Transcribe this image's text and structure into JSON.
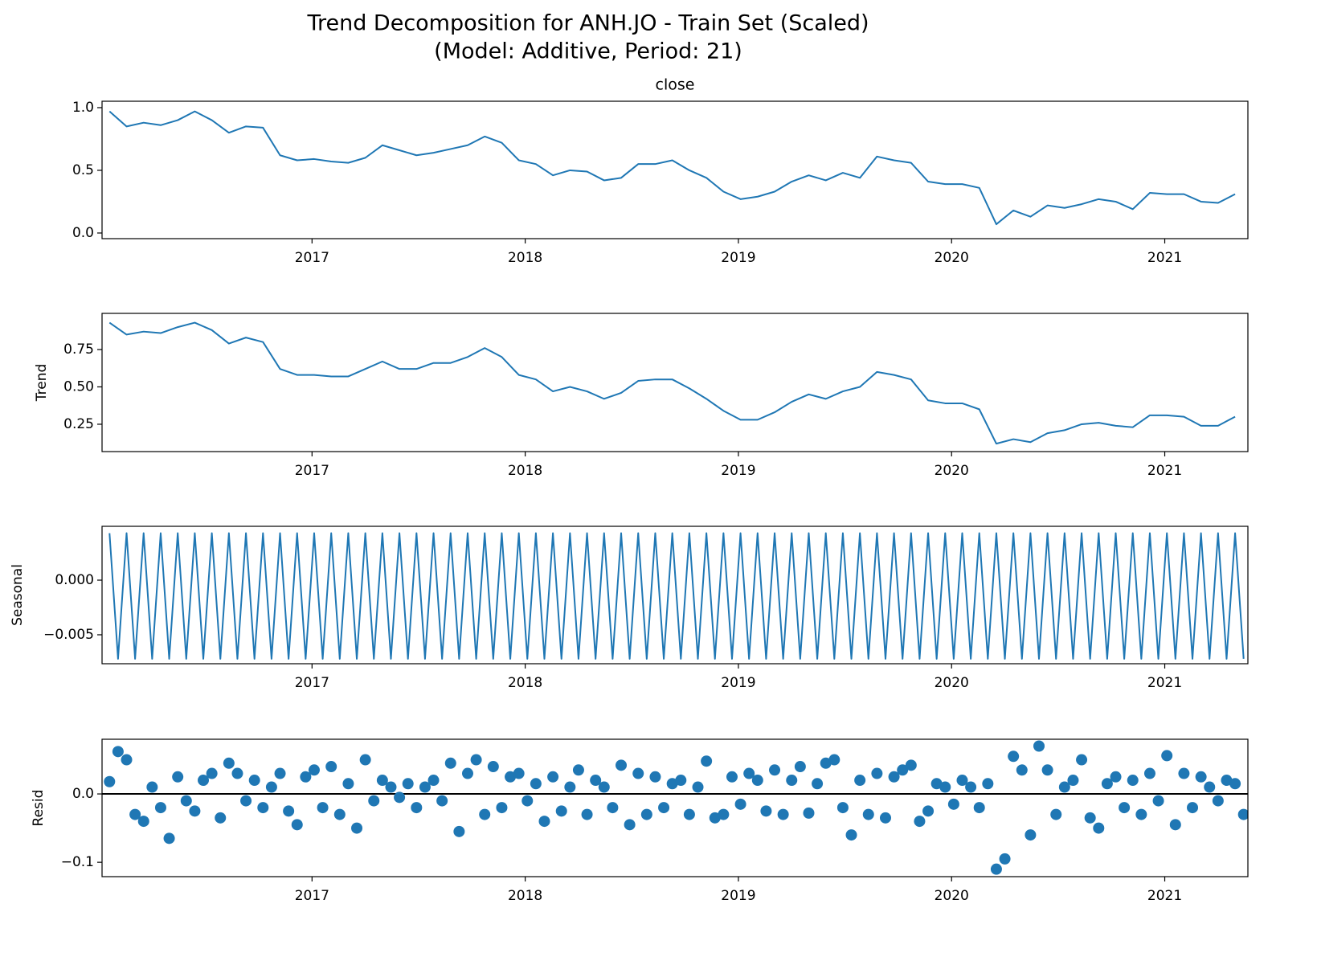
{
  "title": [
    "Trend Decomposition for ANH.JO - Train Set (Scaled)",
    "(Model: Additive, Period: 21)"
  ],
  "chart_data": [
    {
      "type": "line",
      "title": "close",
      "color": "#1f77b4",
      "x": [
        2016.05,
        2016.13,
        2016.21,
        2016.29,
        2016.37,
        2016.45,
        2016.53,
        2016.61,
        2016.69,
        2016.77,
        2016.85,
        2016.93,
        2017.01,
        2017.09,
        2017.17,
        2017.25,
        2017.33,
        2017.41,
        2017.49,
        2017.57,
        2017.65,
        2017.73,
        2017.81,
        2017.89,
        2017.97,
        2018.05,
        2018.13,
        2018.21,
        2018.29,
        2018.37,
        2018.45,
        2018.53,
        2018.61,
        2018.69,
        2018.77,
        2018.85,
        2018.93,
        2019.01,
        2019.09,
        2019.17,
        2019.25,
        2019.33,
        2019.41,
        2019.49,
        2019.57,
        2019.65,
        2019.73,
        2019.81,
        2019.89,
        2019.97,
        2020.05,
        2020.13,
        2020.21,
        2020.29,
        2020.37,
        2020.45,
        2020.53,
        2020.61,
        2020.69,
        2020.77,
        2020.85,
        2020.93,
        2021.01,
        2021.09,
        2021.17,
        2021.25,
        2021.33
      ],
      "values": [
        0.97,
        0.85,
        0.88,
        0.86,
        0.9,
        0.97,
        0.9,
        0.8,
        0.85,
        0.84,
        0.62,
        0.58,
        0.59,
        0.57,
        0.56,
        0.6,
        0.7,
        0.66,
        0.62,
        0.64,
        0.67,
        0.7,
        0.77,
        0.72,
        0.58,
        0.55,
        0.46,
        0.5,
        0.49,
        0.42,
        0.44,
        0.55,
        0.55,
        0.58,
        0.5,
        0.44,
        0.33,
        0.27,
        0.29,
        0.33,
        0.41,
        0.46,
        0.42,
        0.48,
        0.44,
        0.61,
        0.58,
        0.56,
        0.41,
        0.39,
        0.39,
        0.36,
        0.07,
        0.18,
        0.13,
        0.22,
        0.2,
        0.23,
        0.27,
        0.25,
        0.19,
        0.32,
        0.31,
        0.31,
        0.25,
        0.24,
        0.31
      ],
      "xlim": [
        2016.015,
        2021.39
      ],
      "xticks": [
        2017,
        2018,
        2019,
        2020,
        2021
      ],
      "ylim": [
        -0.045,
        1.051
      ],
      "yticks": [
        {
          "value": 0,
          "label": "0.0"
        },
        {
          "value": 0.5,
          "label": "0.5"
        },
        {
          "value": 1,
          "label": "1.0"
        }
      ]
    },
    {
      "type": "line",
      "ylabel": "Trend",
      "color": "#1f77b4",
      "x": [
        2016.05,
        2016.13,
        2016.21,
        2016.29,
        2016.37,
        2016.45,
        2016.53,
        2016.61,
        2016.69,
        2016.77,
        2016.85,
        2016.93,
        2017.01,
        2017.09,
        2017.17,
        2017.25,
        2017.33,
        2017.41,
        2017.49,
        2017.57,
        2017.65,
        2017.73,
        2017.81,
        2017.89,
        2017.97,
        2018.05,
        2018.13,
        2018.21,
        2018.29,
        2018.37,
        2018.45,
        2018.53,
        2018.61,
        2018.69,
        2018.77,
        2018.85,
        2018.93,
        2019.01,
        2019.09,
        2019.17,
        2019.25,
        2019.33,
        2019.41,
        2019.49,
        2019.57,
        2019.65,
        2019.73,
        2019.81,
        2019.89,
        2019.97,
        2020.05,
        2020.13,
        2020.21,
        2020.29,
        2020.37,
        2020.45,
        2020.53,
        2020.61,
        2020.69,
        2020.77,
        2020.85,
        2020.93,
        2021.01,
        2021.09,
        2021.17,
        2021.25,
        2021.33
      ],
      "values": [
        0.93,
        0.85,
        0.87,
        0.86,
        0.9,
        0.93,
        0.88,
        0.79,
        0.83,
        0.8,
        0.62,
        0.58,
        0.58,
        0.57,
        0.57,
        0.62,
        0.67,
        0.62,
        0.62,
        0.66,
        0.66,
        0.7,
        0.76,
        0.7,
        0.58,
        0.55,
        0.47,
        0.5,
        0.47,
        0.42,
        0.46,
        0.54,
        0.55,
        0.55,
        0.49,
        0.42,
        0.34,
        0.28,
        0.28,
        0.33,
        0.4,
        0.45,
        0.42,
        0.47,
        0.5,
        0.6,
        0.58,
        0.55,
        0.41,
        0.39,
        0.39,
        0.35,
        0.12,
        0.15,
        0.13,
        0.19,
        0.21,
        0.25,
        0.26,
        0.24,
        0.23,
        0.31,
        0.31,
        0.3,
        0.24,
        0.24,
        0.3
      ],
      "xlim": [
        2016.015,
        2021.39
      ],
      "xticks": [
        2017,
        2018,
        2019,
        2020,
        2021
      ],
      "ylim": [
        0.067,
        0.992
      ],
      "yticks": [
        0.25,
        {
          "value": 0.5,
          "label": "0.50"
        },
        0.75
      ]
    },
    {
      "type": "line",
      "ylabel": "Seasonal",
      "color": "#1f77b4",
      "x": [
        2016.05,
        2016.09,
        2016.13,
        2016.17,
        2016.21,
        2016.25,
        2016.29,
        2016.33,
        2016.37,
        2016.41,
        2016.45,
        2016.49,
        2016.53,
        2016.57,
        2016.61,
        2016.65,
        2016.69,
        2016.73,
        2016.77,
        2016.81,
        2016.85,
        2016.89,
        2016.93,
        2016.97,
        2017.01,
        2017.05,
        2017.09,
        2017.13,
        2017.17,
        2017.21,
        2017.25,
        2017.29,
        2017.33,
        2017.37,
        2017.41,
        2017.45,
        2017.49,
        2017.53,
        2017.57,
        2017.61,
        2017.65,
        2017.69,
        2017.73,
        2017.77,
        2017.81,
        2017.85,
        2017.89,
        2017.93,
        2017.97,
        2018.01,
        2018.05,
        2018.09,
        2018.13,
        2018.17,
        2018.21,
        2018.25,
        2018.29,
        2018.33,
        2018.37,
        2018.41,
        2018.45,
        2018.49,
        2018.53,
        2018.57,
        2018.61,
        2018.65,
        2018.69,
        2018.73,
        2018.77,
        2018.81,
        2018.85,
        2018.89,
        2018.93,
        2018.97,
        2019.01,
        2019.05,
        2019.09,
        2019.13,
        2019.17,
        2019.21,
        2019.25,
        2019.29,
        2019.33,
        2019.37,
        2019.41,
        2019.45,
        2019.49,
        2019.53,
        2019.57,
        2019.61,
        2019.65,
        2019.69,
        2019.73,
        2019.77,
        2019.81,
        2019.85,
        2019.89,
        2019.93,
        2019.97,
        2020.01,
        2020.05,
        2020.09,
        2020.13,
        2020.17,
        2020.21,
        2020.25,
        2020.29,
        2020.33,
        2020.37,
        2020.41,
        2020.45,
        2020.49,
        2020.53,
        2020.57,
        2020.61,
        2020.65,
        2020.69,
        2020.73,
        2020.77,
        2020.81,
        2020.85,
        2020.89,
        2020.93,
        2020.97,
        2021.01,
        2021.05,
        2021.09,
        2021.13,
        2021.17,
        2021.21,
        2021.25,
        2021.29,
        2021.33,
        2021.37
      ],
      "values": [
        0.0043,
        -0.0072,
        0.0043,
        -0.0072,
        0.0043,
        -0.0072,
        0.0043,
        -0.0072,
        0.0043,
        -0.0072,
        0.0043,
        -0.0072,
        0.0043,
        -0.0072,
        0.0043,
        -0.0072,
        0.0043,
        -0.0072,
        0.0043,
        -0.0072,
        0.0043,
        -0.0072,
        0.0043,
        -0.0072,
        0.0043,
        -0.0072,
        0.0043,
        -0.0072,
        0.0043,
        -0.0072,
        0.0043,
        -0.0072,
        0.0043,
        -0.0072,
        0.0043,
        -0.0072,
        0.0043,
        -0.0072,
        0.0043,
        -0.0072,
        0.0043,
        -0.0072,
        0.0043,
        -0.0072,
        0.0043,
        -0.0072,
        0.0043,
        -0.0072,
        0.0043,
        -0.0072,
        0.0043,
        -0.0072,
        0.0043,
        -0.0072,
        0.0043,
        -0.0072,
        0.0043,
        -0.0072,
        0.0043,
        -0.0072,
        0.0043,
        -0.0072,
        0.0043,
        -0.0072,
        0.0043,
        -0.0072,
        0.0043,
        -0.0072,
        0.0043,
        -0.0072,
        0.0043,
        -0.0072,
        0.0043,
        -0.0072,
        0.0043,
        -0.0072,
        0.0043,
        -0.0072,
        0.0043,
        -0.0072,
        0.0043,
        -0.0072,
        0.0043,
        -0.0072,
        0.0043,
        -0.0072,
        0.0043,
        -0.0072,
        0.0043,
        -0.0072,
        0.0043,
        -0.0072,
        0.0043,
        -0.0072,
        0.0043,
        -0.0072,
        0.0043,
        -0.0072,
        0.0043,
        -0.0072,
        0.0043,
        -0.0072,
        0.0043,
        -0.0072,
        0.0043,
        -0.0072,
        0.0043,
        -0.0072,
        0.0043,
        -0.0072,
        0.0043,
        -0.0072,
        0.0043,
        -0.0072,
        0.0043,
        -0.0072,
        0.0043,
        -0.0072,
        0.0043,
        -0.0072,
        0.0043,
        -0.0072,
        0.0043,
        -0.0072,
        0.0043,
        -0.0072,
        0.0043,
        -0.0072,
        0.0043,
        -0.0072,
        0.0043,
        -0.0072,
        0.0043,
        -0.0072
      ],
      "xlim": [
        2016.015,
        2021.39
      ],
      "xticks": [
        2017,
        2018,
        2019,
        2020,
        2021
      ],
      "ylim": [
        -0.00765,
        0.00493
      ],
      "yticks": [
        {
          "value": -0.005,
          "label": "−0.005"
        },
        {
          "value": 0,
          "label": "0.000"
        }
      ]
    },
    {
      "type": "scatter",
      "ylabel": "Resid",
      "color": "#1f77b4",
      "zero_line": 0,
      "x": [
        2016.05,
        2016.09,
        2016.13,
        2016.17,
        2016.21,
        2016.25,
        2016.29,
        2016.33,
        2016.37,
        2016.41,
        2016.45,
        2016.49,
        2016.53,
        2016.57,
        2016.61,
        2016.65,
        2016.69,
        2016.73,
        2016.77,
        2016.81,
        2016.85,
        2016.89,
        2016.93,
        2016.97,
        2017.01,
        2017.05,
        2017.09,
        2017.13,
        2017.17,
        2017.21,
        2017.25,
        2017.29,
        2017.33,
        2017.37,
        2017.41,
        2017.45,
        2017.49,
        2017.53,
        2017.57,
        2017.61,
        2017.65,
        2017.69,
        2017.73,
        2017.77,
        2017.81,
        2017.85,
        2017.89,
        2017.93,
        2017.97,
        2018.01,
        2018.05,
        2018.09,
        2018.13,
        2018.17,
        2018.21,
        2018.25,
        2018.29,
        2018.33,
        2018.37,
        2018.41,
        2018.45,
        2018.49,
        2018.53,
        2018.57,
        2018.61,
        2018.65,
        2018.69,
        2018.73,
        2018.77,
        2018.81,
        2018.85,
        2018.89,
        2018.93,
        2018.97,
        2019.01,
        2019.05,
        2019.09,
        2019.13,
        2019.17,
        2019.21,
        2019.25,
        2019.29,
        2019.33,
        2019.37,
        2019.41,
        2019.45,
        2019.49,
        2019.53,
        2019.57,
        2019.61,
        2019.65,
        2019.69,
        2019.73,
        2019.77,
        2019.81,
        2019.85,
        2019.89,
        2019.93,
        2019.97,
        2020.01,
        2020.05,
        2020.09,
        2020.13,
        2020.17,
        2020.21,
        2020.25,
        2020.29,
        2020.33,
        2020.37,
        2020.41,
        2020.45,
        2020.49,
        2020.53,
        2020.57,
        2020.61,
        2020.65,
        2020.69,
        2020.73,
        2020.77,
        2020.81,
        2020.85,
        2020.89,
        2020.93,
        2020.97,
        2021.01,
        2021.05,
        2021.09,
        2021.13,
        2021.17,
        2021.21,
        2021.25,
        2021.29,
        2021.33,
        2021.37
      ],
      "values": [
        0.018,
        0.062,
        0.05,
        -0.03,
        -0.04,
        0.01,
        -0.02,
        -0.065,
        0.025,
        -0.01,
        -0.025,
        0.02,
        0.03,
        -0.035,
        0.045,
        0.03,
        -0.01,
        0.02,
        -0.02,
        0.01,
        0.03,
        -0.025,
        -0.045,
        0.025,
        0.035,
        -0.02,
        0.04,
        -0.03,
        0.015,
        -0.05,
        0.05,
        -0.01,
        0.02,
        0.01,
        -0.005,
        0.015,
        -0.02,
        0.01,
        0.02,
        -0.01,
        0.045,
        -0.055,
        0.03,
        0.05,
        -0.03,
        0.04,
        -0.02,
        0.025,
        0.03,
        -0.01,
        0.015,
        -0.04,
        0.025,
        -0.025,
        0.01,
        0.035,
        -0.03,
        0.02,
        0.01,
        -0.02,
        0.042,
        -0.045,
        0.03,
        -0.03,
        0.025,
        -0.02,
        0.015,
        0.02,
        -0.03,
        0.01,
        0.048,
        -0.035,
        -0.03,
        0.025,
        -0.015,
        0.03,
        0.02,
        -0.025,
        0.035,
        -0.03,
        0.02,
        0.04,
        -0.028,
        0.015,
        0.045,
        0.05,
        -0.02,
        -0.06,
        0.02,
        -0.03,
        0.03,
        -0.035,
        0.025,
        0.035,
        0.042,
        -0.04,
        -0.025,
        0.015,
        0.01,
        -0.015,
        0.02,
        0.01,
        -0.02,
        0.015,
        -0.11,
        -0.095,
        0.055,
        0.035,
        -0.06,
        0.07,
        0.035,
        -0.03,
        0.01,
        0.02,
        0.05,
        -0.035,
        -0.05,
        0.015,
        0.025,
        -0.02,
        0.02,
        -0.03,
        0.03,
        -0.01,
        0.056,
        -0.045,
        0.03,
        -0.02,
        0.025,
        0.01,
        -0.01,
        0.02,
        0.015,
        -0.03
      ],
      "xlim": [
        2016.015,
        2021.39
      ],
      "xticks": [
        2017,
        2018,
        2019,
        2020,
        2021
      ],
      "ylim": [
        -0.121,
        0.08
      ],
      "yticks": [
        {
          "value": -0.1,
          "label": "−0.1"
        },
        {
          "value": 0,
          "label": "0.0"
        }
      ]
    }
  ]
}
